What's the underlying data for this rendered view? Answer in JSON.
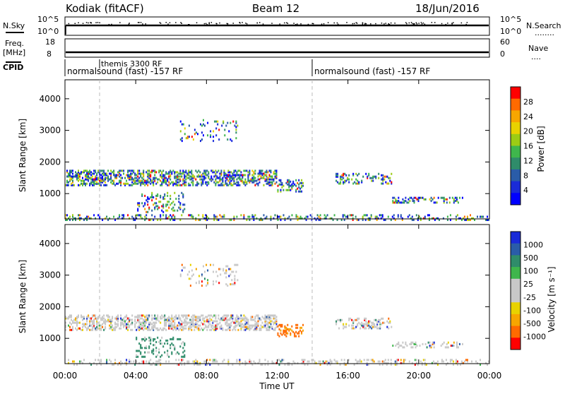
{
  "header": {
    "station": "Kodiak (fitACF)",
    "beam": "Beam 12",
    "date": "18/Jun/2016"
  },
  "top_panels": {
    "nsky": {
      "left_label": "N.Sky",
      "left_ticks": [
        "10^5",
        "10^0"
      ],
      "right_ticks": [
        "10^5",
        "10^0"
      ],
      "right_label": "N.Search",
      "right_legend": "........"
    },
    "freq": {
      "left_label": "Freq.",
      "left_unit": "[MHz]",
      "left_ticks": [
        "18",
        "8"
      ],
      "right_ticks": [
        "60",
        "0"
      ],
      "right_label": "Nave",
      "right_legend": "...."
    },
    "cpid": {
      "label": "CPID",
      "entries": [
        "themis 3300 RF",
        "normalsound (fast) -157 RF",
        "normalsound (fast) -157 RF"
      ]
    }
  },
  "chart_data": [
    {
      "type": "heatmap",
      "name": "power",
      "ylabel": "Slant Range [km]",
      "yticks": [
        1000,
        2000,
        3000,
        4000
      ],
      "ylim": [
        200,
        4600
      ],
      "xlim": [
        0,
        24
      ],
      "colorbar_label": "Power [dB]",
      "colorbar_ticks": [
        "28",
        "24",
        "20",
        "16",
        "12",
        "8",
        "4"
      ],
      "colorbar_colors": [
        "#ff0000",
        "#ff6a00",
        "#f7a600",
        "#e8d200",
        "#9ccc14",
        "#3fb64c",
        "#2f8c6a",
        "#2a5ca8",
        "#1a2bd8",
        "#0000ff"
      ],
      "bands": [
        {
          "t0": 0.0,
          "t1": 12.0,
          "r0": 1300,
          "r1": 1800,
          "density": 0.85
        },
        {
          "t0": 12.0,
          "t1": 13.5,
          "r0": 1100,
          "r1": 1500,
          "density": 0.6
        },
        {
          "t0": 15.3,
          "t1": 18.5,
          "r0": 1350,
          "r1": 1700,
          "density": 0.5
        },
        {
          "t0": 18.5,
          "t1": 22.6,
          "r0": 750,
          "r1": 950,
          "density": 0.55
        },
        {
          "t0": 4.0,
          "t1": 6.8,
          "r0": 450,
          "r1": 1100,
          "density": 0.35
        },
        {
          "t0": 6.5,
          "t1": 9.8,
          "r0": 2700,
          "r1": 3400,
          "density": 0.25
        },
        {
          "t0": 0.0,
          "t1": 24.0,
          "r0": 200,
          "r1": 400,
          "density": 0.45
        }
      ]
    },
    {
      "type": "heatmap",
      "name": "velocity",
      "ylabel": "Slant Range [km]",
      "yticks": [
        1000,
        2000,
        3000,
        4000
      ],
      "ylim": [
        200,
        4600
      ],
      "xlim": [
        0,
        24
      ],
      "colorbar_label": "Velocity [m s⁻¹]",
      "colorbar_ticks": [
        "1000",
        "500",
        "100",
        "25",
        "-25",
        "-100",
        "-500",
        "-1000"
      ],
      "colorbar_colors": [
        "#1a2bd8",
        "#2a5ca8",
        "#2f8c6a",
        "#3fb64c",
        "#c8c8c8",
        "#c8c8c8",
        "#e8d200",
        "#f7a600",
        "#ff6a00",
        "#ff0000"
      ],
      "bands": [
        {
          "t0": 0.0,
          "t1": 12.0,
          "r0": 1300,
          "r1": 1800,
          "density": 0.85
        },
        {
          "t0": 12.0,
          "t1": 13.5,
          "r0": 1100,
          "r1": 1500,
          "density": 0.6
        },
        {
          "t0": 15.3,
          "t1": 18.5,
          "r0": 1350,
          "r1": 1700,
          "density": 0.5
        },
        {
          "t0": 18.5,
          "t1": 22.6,
          "r0": 750,
          "r1": 950,
          "density": 0.55
        },
        {
          "t0": 4.0,
          "t1": 6.8,
          "r0": 450,
          "r1": 1100,
          "density": 0.35
        },
        {
          "t0": 6.5,
          "t1": 9.8,
          "r0": 2700,
          "r1": 3400,
          "density": 0.25
        },
        {
          "t0": 0.0,
          "t1": 24.0,
          "r0": 200,
          "r1": 400,
          "density": 0.45
        }
      ]
    }
  ],
  "x_axis": {
    "ticks": [
      "00:00",
      "04:00",
      "08:00",
      "12:00",
      "16:00",
      "20:00",
      "00:00"
    ],
    "label": "Time UT"
  }
}
